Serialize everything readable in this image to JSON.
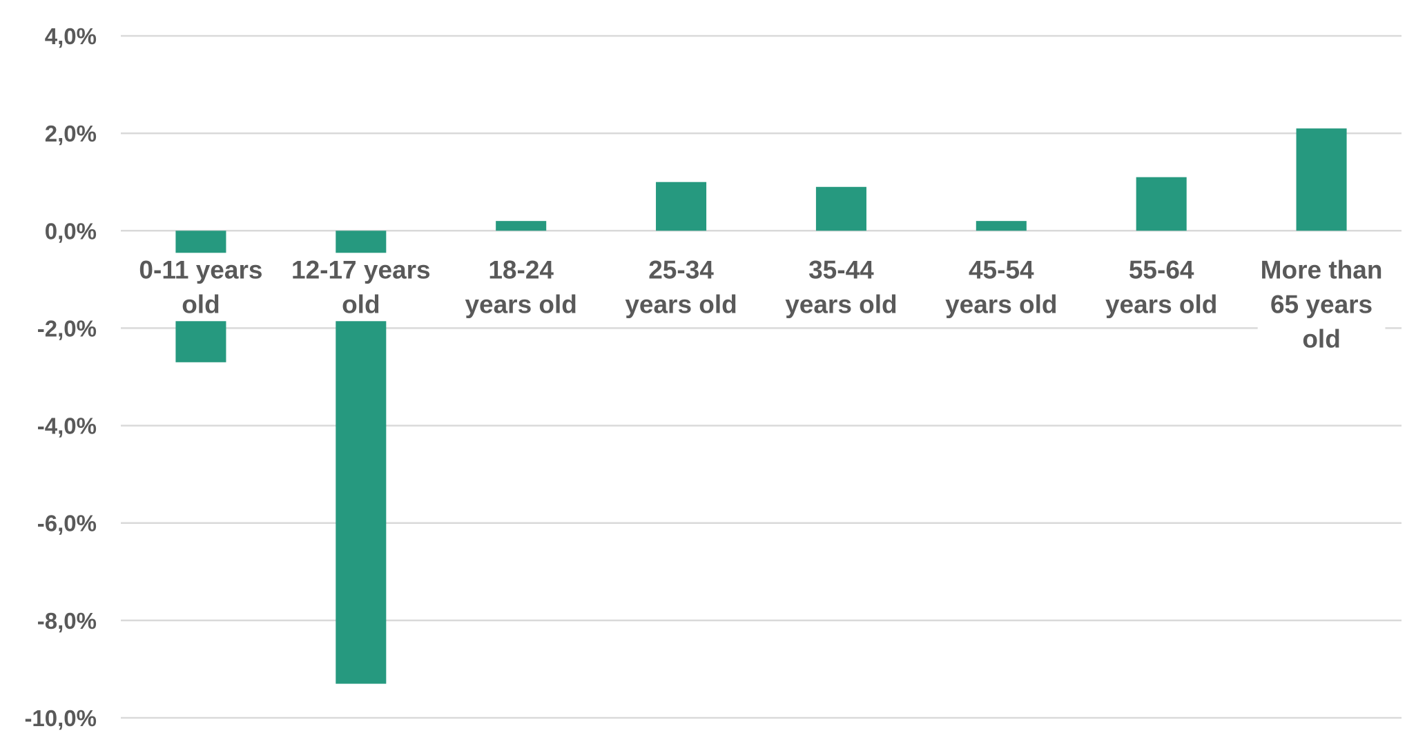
{
  "chart_data": {
    "type": "bar",
    "categories": [
      [
        "0-11 years",
        "old"
      ],
      [
        "12-17 years",
        "old"
      ],
      [
        "18-24",
        "years old"
      ],
      [
        "25-34",
        "years old"
      ],
      [
        "35-44",
        "years old"
      ],
      [
        "45-54",
        "years old"
      ],
      [
        "55-64",
        "years old"
      ],
      [
        "More than",
        "65 years",
        "old"
      ]
    ],
    "values": [
      -2.7,
      -9.3,
      0.2,
      1.0,
      0.9,
      0.2,
      1.1,
      2.1
    ],
    "ylim": [
      -10,
      4
    ],
    "yticks": [
      4,
      2,
      0,
      -2,
      -4,
      -6,
      -8,
      -10
    ],
    "ytick_labels": [
      "4,0%",
      "2,0%",
      "0,0%",
      "-2,0%",
      "-4,0%",
      "-6,0%",
      "-8,0%",
      "-10,0%"
    ],
    "grid": true,
    "bar_color": "#26997F",
    "grid_color": "#D9D9D9",
    "text_color": "#595959",
    "title": "",
    "xlabel": "",
    "ylabel": ""
  }
}
